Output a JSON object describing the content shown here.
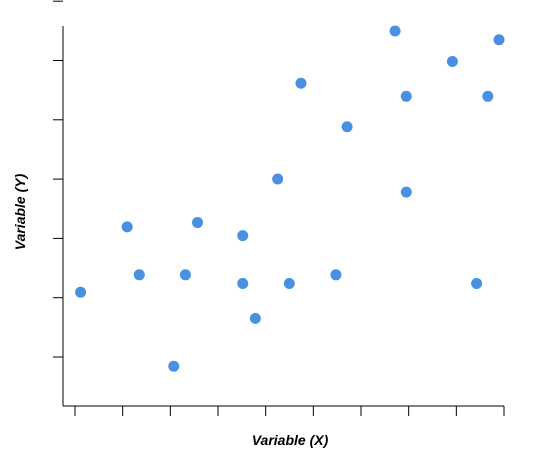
{
  "chart_data": {
    "type": "scatter",
    "title": "",
    "xlabel": "Variable (X)",
    "ylabel": "Variable (Y)",
    "x": [
      0.12,
      1.12,
      1.38,
      2.12,
      2.37,
      2.63,
      3.6,
      3.6,
      3.87,
      4.35,
      4.6,
      4.85,
      5.6,
      5.84,
      6.87,
      7.11,
      7.11,
      8.1,
      8.62,
      8.86,
      9.1
    ],
    "y": [
      3.2,
      4.7,
      3.6,
      1.5,
      3.6,
      4.8,
      4.5,
      3.4,
      2.6,
      5.8,
      3.4,
      8.0,
      3.6,
      7.0,
      9.2,
      7.7,
      5.5,
      8.5,
      3.4,
      7.7,
      9.0
    ],
    "xlim": [
      0,
      9.1
    ],
    "ylim": [
      1,
      9.2
    ],
    "x_ticks": [
      0,
      1,
      2,
      3,
      4,
      5,
      6,
      7,
      8,
      9
    ],
    "y_ticks": [
      2,
      3,
      4,
      5,
      6,
      7,
      8
    ],
    "tick_labels_shown": false,
    "grid": false,
    "legend": "none",
    "marker_color": "#4a90e2"
  }
}
